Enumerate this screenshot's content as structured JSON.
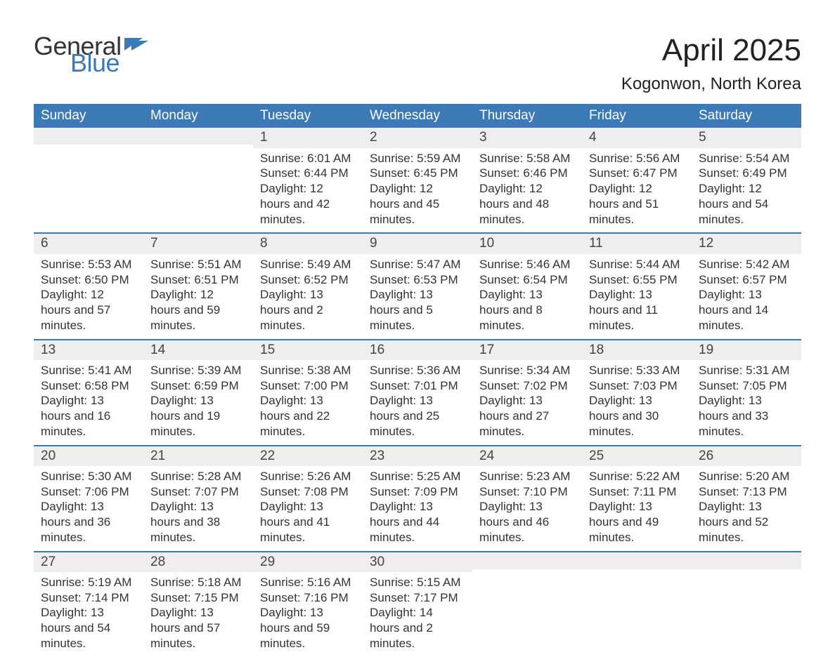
{
  "logo": {
    "text1": "General",
    "text2": "Blue",
    "flag_color": "#3b79b7"
  },
  "title": "April 2025",
  "location": "Kogonwon, North Korea",
  "colors": {
    "header_bg": "#3b79b7",
    "header_text": "#ffffff",
    "daynum_bg": "#eeeeee",
    "text": "#333333",
    "week_border": "#3b79b7",
    "page_bg": "#ffffff"
  },
  "day_headers": [
    "Sunday",
    "Monday",
    "Tuesday",
    "Wednesday",
    "Thursday",
    "Friday",
    "Saturday"
  ],
  "weeks": [
    [
      {
        "n": "",
        "sunrise": "",
        "sunset": "",
        "daylight": ""
      },
      {
        "n": "",
        "sunrise": "",
        "sunset": "",
        "daylight": ""
      },
      {
        "n": "1",
        "sunrise": "Sunrise: 6:01 AM",
        "sunset": "Sunset: 6:44 PM",
        "daylight": "Daylight: 12 hours and 42 minutes."
      },
      {
        "n": "2",
        "sunrise": "Sunrise: 5:59 AM",
        "sunset": "Sunset: 6:45 PM",
        "daylight": "Daylight: 12 hours and 45 minutes."
      },
      {
        "n": "3",
        "sunrise": "Sunrise: 5:58 AM",
        "sunset": "Sunset: 6:46 PM",
        "daylight": "Daylight: 12 hours and 48 minutes."
      },
      {
        "n": "4",
        "sunrise": "Sunrise: 5:56 AM",
        "sunset": "Sunset: 6:47 PM",
        "daylight": "Daylight: 12 hours and 51 minutes."
      },
      {
        "n": "5",
        "sunrise": "Sunrise: 5:54 AM",
        "sunset": "Sunset: 6:49 PM",
        "daylight": "Daylight: 12 hours and 54 minutes."
      }
    ],
    [
      {
        "n": "6",
        "sunrise": "Sunrise: 5:53 AM",
        "sunset": "Sunset: 6:50 PM",
        "daylight": "Daylight: 12 hours and 57 minutes."
      },
      {
        "n": "7",
        "sunrise": "Sunrise: 5:51 AM",
        "sunset": "Sunset: 6:51 PM",
        "daylight": "Daylight: 12 hours and 59 minutes."
      },
      {
        "n": "8",
        "sunrise": "Sunrise: 5:49 AM",
        "sunset": "Sunset: 6:52 PM",
        "daylight": "Daylight: 13 hours and 2 minutes."
      },
      {
        "n": "9",
        "sunrise": "Sunrise: 5:47 AM",
        "sunset": "Sunset: 6:53 PM",
        "daylight": "Daylight: 13 hours and 5 minutes."
      },
      {
        "n": "10",
        "sunrise": "Sunrise: 5:46 AM",
        "sunset": "Sunset: 6:54 PM",
        "daylight": "Daylight: 13 hours and 8 minutes."
      },
      {
        "n": "11",
        "sunrise": "Sunrise: 5:44 AM",
        "sunset": "Sunset: 6:55 PM",
        "daylight": "Daylight: 13 hours and 11 minutes."
      },
      {
        "n": "12",
        "sunrise": "Sunrise: 5:42 AM",
        "sunset": "Sunset: 6:57 PM",
        "daylight": "Daylight: 13 hours and 14 minutes."
      }
    ],
    [
      {
        "n": "13",
        "sunrise": "Sunrise: 5:41 AM",
        "sunset": "Sunset: 6:58 PM",
        "daylight": "Daylight: 13 hours and 16 minutes."
      },
      {
        "n": "14",
        "sunrise": "Sunrise: 5:39 AM",
        "sunset": "Sunset: 6:59 PM",
        "daylight": "Daylight: 13 hours and 19 minutes."
      },
      {
        "n": "15",
        "sunrise": "Sunrise: 5:38 AM",
        "sunset": "Sunset: 7:00 PM",
        "daylight": "Daylight: 13 hours and 22 minutes."
      },
      {
        "n": "16",
        "sunrise": "Sunrise: 5:36 AM",
        "sunset": "Sunset: 7:01 PM",
        "daylight": "Daylight: 13 hours and 25 minutes."
      },
      {
        "n": "17",
        "sunrise": "Sunrise: 5:34 AM",
        "sunset": "Sunset: 7:02 PM",
        "daylight": "Daylight: 13 hours and 27 minutes."
      },
      {
        "n": "18",
        "sunrise": "Sunrise: 5:33 AM",
        "sunset": "Sunset: 7:03 PM",
        "daylight": "Daylight: 13 hours and 30 minutes."
      },
      {
        "n": "19",
        "sunrise": "Sunrise: 5:31 AM",
        "sunset": "Sunset: 7:05 PM",
        "daylight": "Daylight: 13 hours and 33 minutes."
      }
    ],
    [
      {
        "n": "20",
        "sunrise": "Sunrise: 5:30 AM",
        "sunset": "Sunset: 7:06 PM",
        "daylight": "Daylight: 13 hours and 36 minutes."
      },
      {
        "n": "21",
        "sunrise": "Sunrise: 5:28 AM",
        "sunset": "Sunset: 7:07 PM",
        "daylight": "Daylight: 13 hours and 38 minutes."
      },
      {
        "n": "22",
        "sunrise": "Sunrise: 5:26 AM",
        "sunset": "Sunset: 7:08 PM",
        "daylight": "Daylight: 13 hours and 41 minutes."
      },
      {
        "n": "23",
        "sunrise": "Sunrise: 5:25 AM",
        "sunset": "Sunset: 7:09 PM",
        "daylight": "Daylight: 13 hours and 44 minutes."
      },
      {
        "n": "24",
        "sunrise": "Sunrise: 5:23 AM",
        "sunset": "Sunset: 7:10 PM",
        "daylight": "Daylight: 13 hours and 46 minutes."
      },
      {
        "n": "25",
        "sunrise": "Sunrise: 5:22 AM",
        "sunset": "Sunset: 7:11 PM",
        "daylight": "Daylight: 13 hours and 49 minutes."
      },
      {
        "n": "26",
        "sunrise": "Sunrise: 5:20 AM",
        "sunset": "Sunset: 7:13 PM",
        "daylight": "Daylight: 13 hours and 52 minutes."
      }
    ],
    [
      {
        "n": "27",
        "sunrise": "Sunrise: 5:19 AM",
        "sunset": "Sunset: 7:14 PM",
        "daylight": "Daylight: 13 hours and 54 minutes."
      },
      {
        "n": "28",
        "sunrise": "Sunrise: 5:18 AM",
        "sunset": "Sunset: 7:15 PM",
        "daylight": "Daylight: 13 hours and 57 minutes."
      },
      {
        "n": "29",
        "sunrise": "Sunrise: 5:16 AM",
        "sunset": "Sunset: 7:16 PM",
        "daylight": "Daylight: 13 hours and 59 minutes."
      },
      {
        "n": "30",
        "sunrise": "Sunrise: 5:15 AM",
        "sunset": "Sunset: 7:17 PM",
        "daylight": "Daylight: 14 hours and 2 minutes."
      },
      {
        "n": "",
        "sunrise": "",
        "sunset": "",
        "daylight": ""
      },
      {
        "n": "",
        "sunrise": "",
        "sunset": "",
        "daylight": ""
      },
      {
        "n": "",
        "sunrise": "",
        "sunset": "",
        "daylight": ""
      }
    ]
  ]
}
